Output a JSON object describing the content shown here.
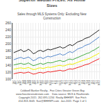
{
  "chart_data": {
    "type": "line",
    "title": "Superior Median Prices: All Home Sizes",
    "subtitle": "Sales through MLS Systems Only: Excluding New Construction",
    "annotations": [
      "Coldwell Banker Realty - Fox Cities Greater Green Bay    www.foxcitiesrealestate.com    Data source: MLS & Realtrends",
      "Copyright 2015  262-695-1234  Realty BHHSPI  Sue Fitch 414-813-3045  Sue@BHHSPI.com  Jan-2015  Page 1 of 1"
    ],
    "categories": [
      "1/07",
      "4/07",
      "7/07",
      "10/07",
      "1/08",
      "4/08",
      "7/08",
      "10/08",
      "1/09",
      "4/09",
      "7/09",
      "10/09",
      "1/10",
      "4/10",
      "7/10",
      "10/10",
      "1/11",
      "4/11",
      "7/11",
      "10/11",
      "1/12",
      "4/12",
      "7/12",
      "10/12",
      "1/13",
      "4/13",
      "7/13",
      "10/13",
      "1/14",
      "4/14",
      "7/14",
      "10/14",
      "1/15",
      "4/15",
      "7/15",
      "10/15"
    ],
    "series": [
      {
        "color": "#222222",
        "values": [
          175,
          178,
          182,
          184,
          178,
          180,
          185,
          180,
          172,
          175,
          180,
          182,
          178,
          182,
          185,
          183,
          185,
          188,
          190,
          192,
          188,
          190,
          195,
          198,
          195,
          200,
          205,
          208,
          210,
          215,
          218,
          220,
          225,
          230,
          235,
          240
        ]
      },
      {
        "color": "#5588cc",
        "values": [
          155,
          158,
          160,
          162,
          158,
          160,
          163,
          158,
          152,
          155,
          160,
          162,
          158,
          162,
          165,
          163,
          165,
          168,
          170,
          172,
          168,
          170,
          175,
          178,
          175,
          180,
          185,
          188,
          190,
          195,
          198,
          200,
          205,
          210,
          215,
          220
        ]
      },
      {
        "color": "#44aa44",
        "values": [
          140,
          142,
          144,
          145,
          142,
          143,
          146,
          142,
          138,
          140,
          143,
          145,
          142,
          145,
          147,
          146,
          147,
          150,
          152,
          153,
          150,
          151,
          155,
          157,
          155,
          158,
          162,
          165,
          167,
          170,
          173,
          175,
          180,
          183,
          188,
          192
        ]
      },
      {
        "color": "#eeee00",
        "values": [
          128,
          130,
          131,
          132,
          130,
          131,
          133,
          130,
          127,
          128,
          131,
          132,
          130,
          132,
          134,
          133,
          134,
          136,
          138,
          139,
          137,
          138,
          141,
          143,
          142,
          144,
          147,
          150,
          152,
          155,
          157,
          159,
          163,
          166,
          170,
          174
        ]
      },
      {
        "color": "#ee2222",
        "values": [
          115,
          117,
          118,
          119,
          117,
          118,
          120,
          117,
          114,
          115,
          118,
          119,
          117,
          119,
          121,
          120,
          121,
          123,
          124,
          125,
          123,
          124,
          127,
          129,
          128,
          130,
          133,
          135,
          137,
          140,
          142,
          144,
          148,
          151,
          155,
          158
        ]
      }
    ],
    "ylim": [
      100,
      260
    ],
    "yticks": [
      100,
      120,
      140,
      160,
      180,
      200,
      220,
      240,
      260
    ],
    "grid": true
  }
}
